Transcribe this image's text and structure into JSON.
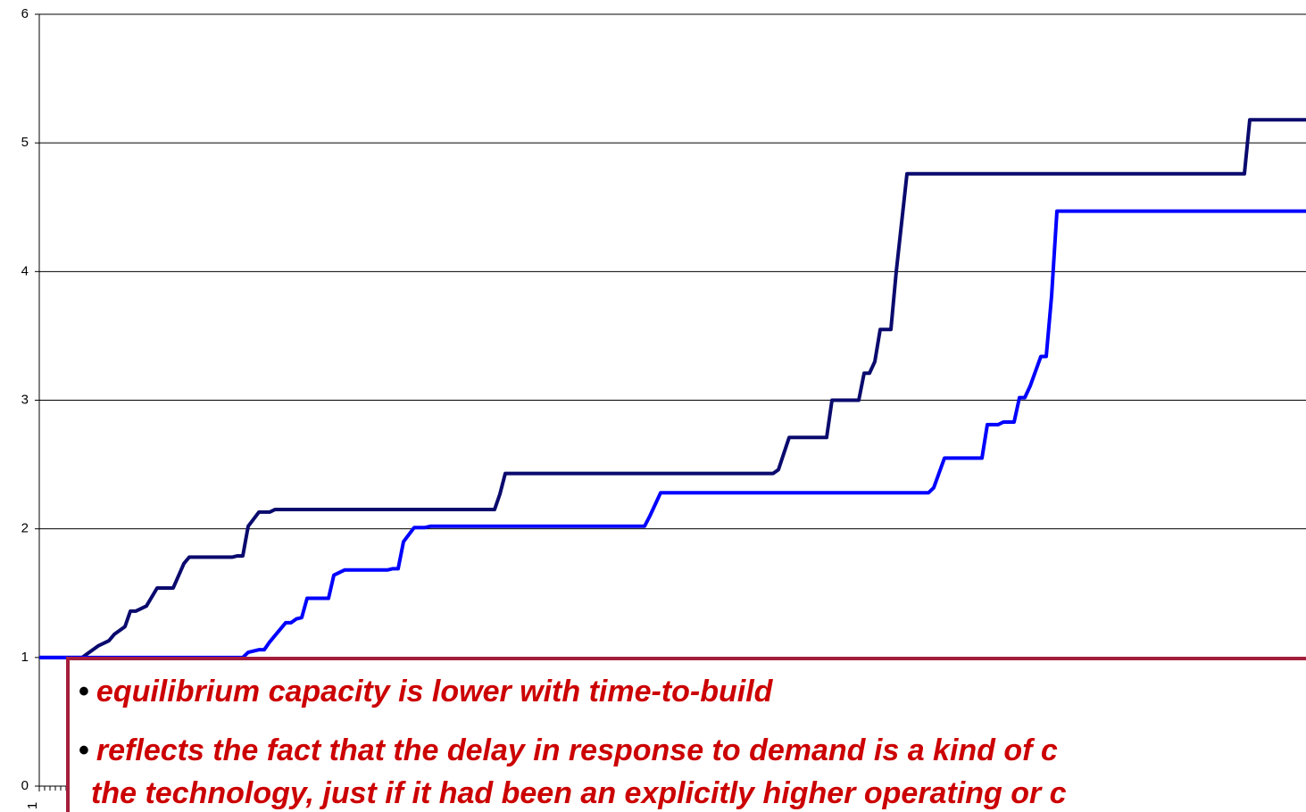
{
  "chart_data": {
    "type": "line",
    "xlim": [
      1,
      237.5
    ],
    "xticks": [
      1
    ],
    "ylim": [
      0,
      6
    ],
    "yticks": [
      0,
      1,
      2,
      3,
      4,
      5,
      6
    ],
    "grid": true,
    "series": [
      {
        "color": "#0a0a6e",
        "x": [
          1,
          9,
          10,
          12,
          14,
          15,
          17,
          18,
          19,
          20,
          21,
          23,
          26,
          28,
          29,
          37,
          38,
          39,
          40,
          42,
          44,
          45,
          86,
          87,
          88,
          138,
          139,
          141,
          148,
          149,
          154,
          155,
          156,
          157,
          158,
          160,
          161,
          163,
          226,
          227,
          237.5
        ],
        "values": [
          1,
          1,
          1.03,
          1.09,
          1.13,
          1.18,
          1.24,
          1.36,
          1.36,
          1.38,
          1.4,
          1.54,
          1.54,
          1.73,
          1.78,
          1.78,
          1.79,
          1.79,
          2.02,
          2.13,
          2.13,
          2.15,
          2.15,
          2.27,
          2.43,
          2.43,
          2.46,
          2.71,
          2.71,
          3.0,
          3.0,
          3.21,
          3.21,
          3.3,
          3.55,
          3.55,
          4.0,
          4.76,
          4.76,
          5.18,
          5.18
        ]
      },
      {
        "color": "#0000ff",
        "x": [
          1,
          39,
          40,
          42,
          43,
          44,
          45,
          47,
          48,
          49,
          50,
          51,
          55,
          56,
          58,
          66,
          67,
          68,
          69,
          71,
          73,
          74,
          114,
          115,
          117,
          167,
          168,
          170,
          177,
          178,
          180,
          181,
          183,
          184,
          185,
          186,
          188,
          189,
          190,
          191,
          237.5
        ],
        "values": [
          1,
          1,
          1.04,
          1.06,
          1.06,
          1.12,
          1.17,
          1.27,
          1.27,
          1.3,
          1.31,
          1.46,
          1.46,
          1.64,
          1.68,
          1.68,
          1.69,
          1.69,
          1.9,
          2.01,
          2.01,
          2.02,
          2.02,
          2.1,
          2.28,
          2.28,
          2.32,
          2.55,
          2.55,
          2.81,
          2.81,
          2.83,
          2.83,
          3.02,
          3.02,
          3.11,
          3.34,
          3.34,
          3.81,
          4.47,
          4.47
        ]
      }
    ]
  },
  "callout": {
    "bullets": [
      [
        "equilibrium capacity is lower with time-to-build"
      ],
      [
        "reflects the fact that the delay in response to demand is a kind of c",
        "the technology, just if it had been an explicitly higher operating or c"
      ]
    ]
  }
}
